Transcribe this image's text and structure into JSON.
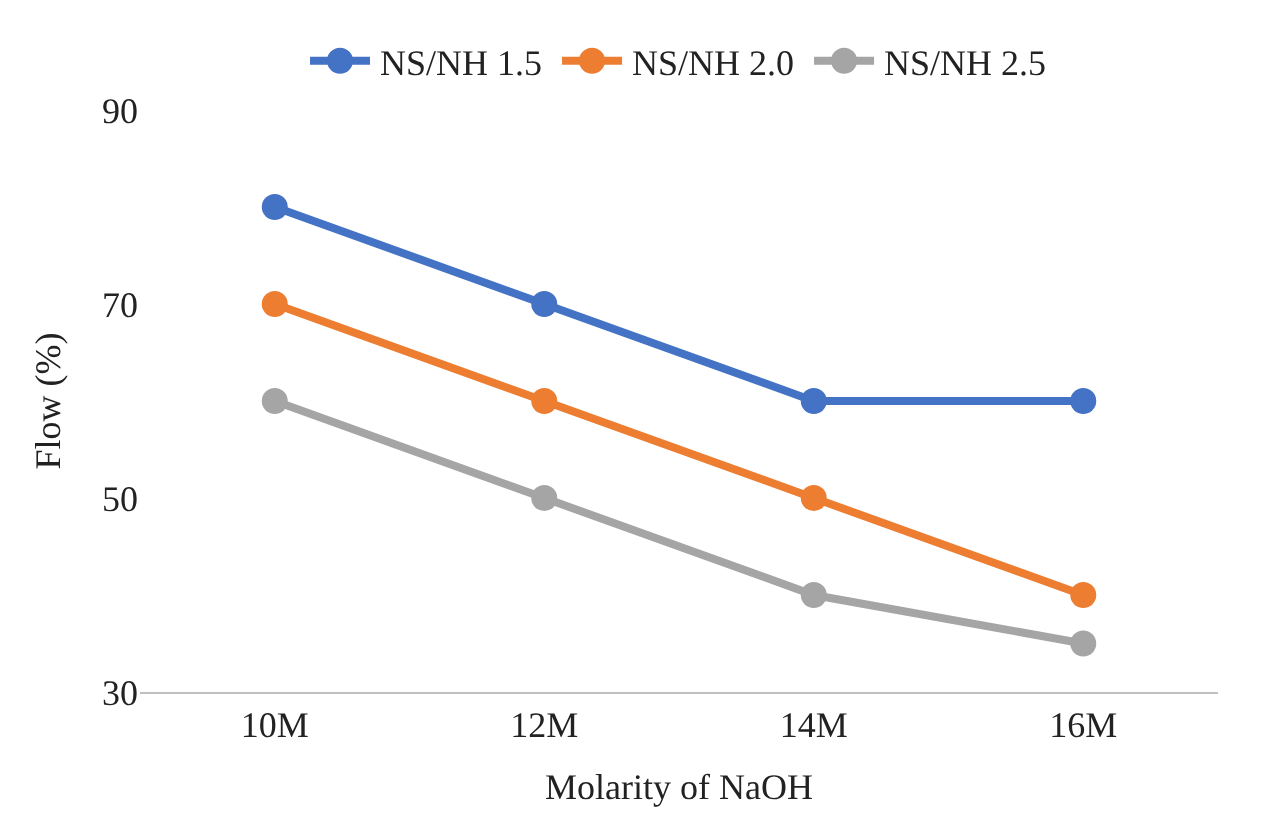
{
  "chart_data": {
    "type": "line",
    "xlabel": "Molarity of NaOH",
    "ylabel": "Flow (%)",
    "categories": [
      "10M",
      "12M",
      "14M",
      "16M"
    ],
    "series": [
      {
        "name": "NS/NH 1.5",
        "color": "#4472c4",
        "values": [
          80,
          70,
          60,
          60
        ]
      },
      {
        "name": "NS/NH 2.0",
        "color": "#ed7d31",
        "values": [
          70,
          60,
          50,
          40
        ]
      },
      {
        "name": "NS/NH 2.5",
        "color": "#a5a5a5",
        "values": [
          60,
          50,
          40,
          35
        ]
      }
    ],
    "ylim": [
      30,
      90
    ],
    "yticks": [
      30,
      50,
      70,
      90
    ],
    "grid": false,
    "legend": "top",
    "marker": "circle",
    "line_style": "solid"
  }
}
